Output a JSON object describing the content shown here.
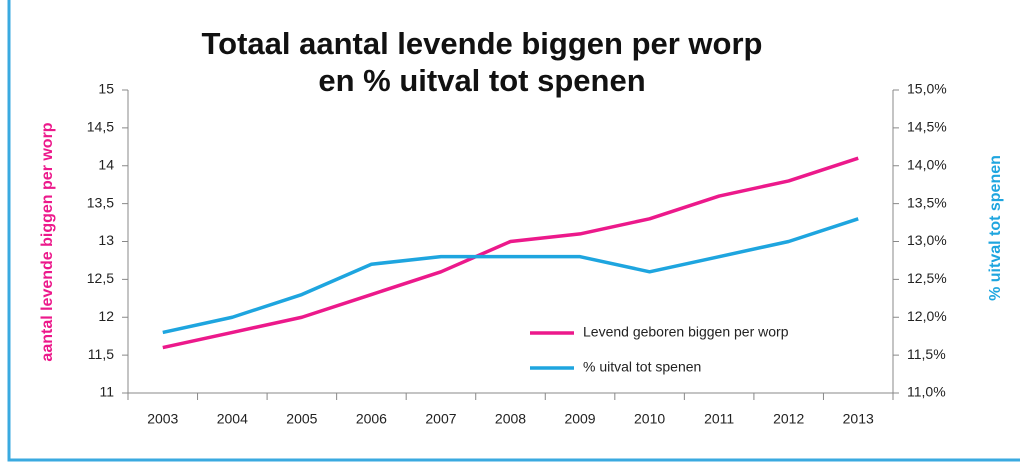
{
  "chart_data": {
    "type": "line",
    "title": "Totaal aantal levende biggen per worp",
    "subtitle": "en % uitval tot spenen",
    "y_label": "aantal levende biggen per worp",
    "y2_label": "% uitval tot spenen",
    "categories": [
      "2003",
      "2004",
      "2005",
      "2006",
      "2007",
      "2008",
      "2009",
      "2010",
      "2011",
      "2012",
      "2013"
    ],
    "series": [
      {
        "name": "Levend geboren biggen per worp",
        "color": "#ec198b",
        "values": [
          11.6,
          11.8,
          12.0,
          12.3,
          12.6,
          13.0,
          13.1,
          13.3,
          13.6,
          13.8,
          14.1
        ]
      },
      {
        "name": "% uitval tot spenen",
        "color": "#1ea5df",
        "axis": "y2",
        "values": [
          11.8,
          12.0,
          12.3,
          12.7,
          12.8,
          12.8,
          12.8,
          12.6,
          12.8,
          13.0,
          13.3
        ]
      }
    ],
    "ylim": [
      11,
      15
    ],
    "yticks": [
      11,
      {
        "value": 11.5,
        "label": "11,5"
      },
      12,
      {
        "value": 12.5,
        "label": "12,5"
      },
      13,
      {
        "value": 13.5,
        "label": "13,5"
      },
      14,
      {
        "value": 14.5,
        "label": "14,5"
      },
      15
    ],
    "y2lim": [
      11,
      15
    ],
    "y2ticks": [
      {
        "value": 11,
        "label": "11,0%"
      },
      {
        "value": 11.5,
        "label": "11,5%"
      },
      {
        "value": 12,
        "label": "12,0%"
      },
      {
        "value": 12.5,
        "label": "12,5%"
      },
      {
        "value": 13,
        "label": "13,0%"
      },
      {
        "value": 13.5,
        "label": "13,5%"
      },
      {
        "value": 14,
        "label": "14,0%"
      },
      {
        "value": 14.5,
        "label": "14,5%"
      },
      {
        "value": 15,
        "label": "15,0%"
      }
    ],
    "grid": false,
    "legend": "lower-right"
  }
}
